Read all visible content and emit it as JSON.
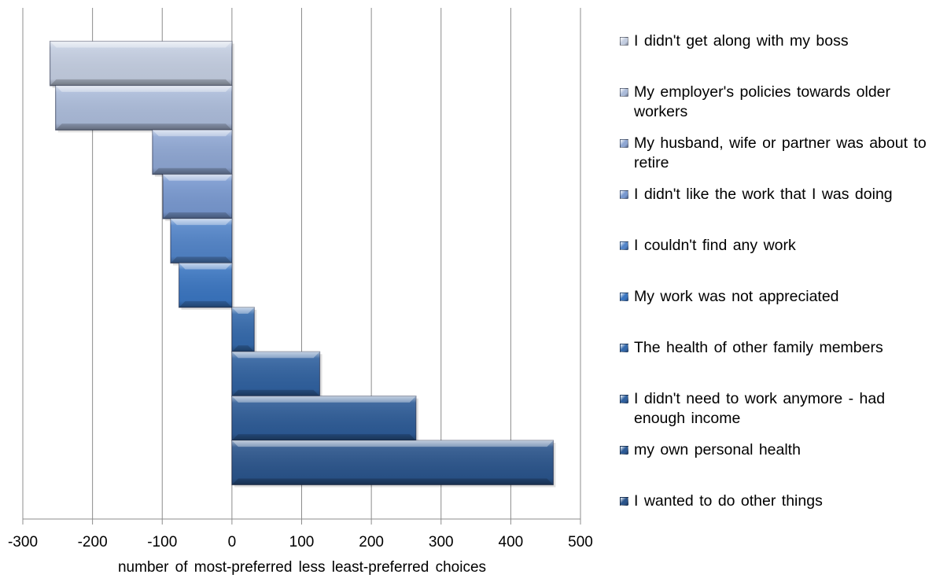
{
  "chart_data": {
    "type": "bar",
    "orientation": "horizontal",
    "title": "",
    "xlabel": "number of most-preferred less least-preferred choices",
    "ylabel": "",
    "xlim": [
      -300,
      500
    ],
    "xticks": [
      "-300",
      "-200",
      "-100",
      "0",
      "100",
      "200",
      "300",
      "400",
      "500"
    ],
    "grid": true,
    "legend_position": "right",
    "series": [
      {
        "name": "I didn't get along with my boss",
        "value": -261,
        "color": "#c3cde0"
      },
      {
        "name": "My employer's policies towards older workers",
        "value": -253,
        "color": "#abbbd9"
      },
      {
        "name": "My husband, wife or partner was about to retire",
        "value": -114,
        "color": "#8ea6d2"
      },
      {
        "name": "I didn't like the work that I was doing",
        "value": -99,
        "color": "#7898cf"
      },
      {
        "name": "I couldn't find any work",
        "value": -88,
        "color": "#5284c8"
      },
      {
        "name": "My work was not appreciated",
        "value": -76,
        "color": "#3a75c0"
      },
      {
        "name": "The health of other family members",
        "value": 32,
        "color": "#3469ab"
      },
      {
        "name": "I didn't need to work anymore - had enough income",
        "value": 126,
        "color": "#30619f"
      },
      {
        "name": "my own personal health",
        "value": 264,
        "color": "#2d5b96"
      },
      {
        "name": "I wanted to do other things",
        "value": 461,
        "color": "#2a548b"
      }
    ]
  }
}
